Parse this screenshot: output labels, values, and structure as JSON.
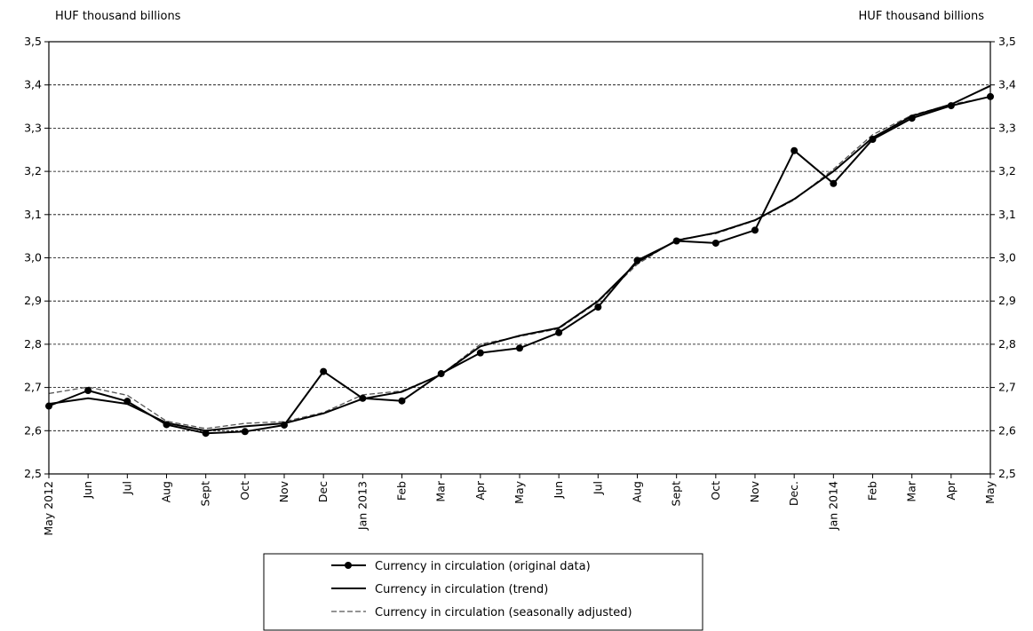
{
  "chart_data": {
    "type": "line",
    "left_axis_label": "HUF thousand  billions",
    "right_axis_label": "HUF thousand  billions",
    "ylim": [
      2.5,
      3.5
    ],
    "yticks": [
      "2,5",
      "2,6",
      "2,7",
      "2,8",
      "2,9",
      "3,0",
      "3,1",
      "3,2",
      "3,3",
      "3,4",
      "3,5"
    ],
    "categories": [
      "May 2012",
      "Jun",
      "Jul",
      "Aug",
      "Sept",
      "Oct",
      "Nov",
      "Dec",
      "Jan 2013",
      "Feb",
      "Mar",
      "Apr",
      "May",
      "Jun",
      "Jul",
      "Aug",
      "Sept",
      "Oct",
      "Nov",
      "Dec.",
      "Jan 2014",
      "Feb",
      "Mar",
      "Apr",
      "May"
    ],
    "grid": "horizontal dashed",
    "legend_position": "bottom-center",
    "series": [
      {
        "name": "Currency in circulation (original data)",
        "style": "solid-markers",
        "color": "#000000",
        "values": [
          2.657,
          2.693,
          2.668,
          2.614,
          2.594,
          2.598,
          2.613,
          2.737,
          2.675,
          2.669,
          2.732,
          2.78,
          2.791,
          2.827,
          2.886,
          2.994,
          3.039,
          3.034,
          3.064,
          3.248,
          3.172,
          3.274,
          3.323,
          3.352,
          3.373
        ]
      },
      {
        "name": "Currency in circulation (trend)",
        "style": "solid",
        "color": "#000000",
        "values": [
          2.662,
          2.675,
          2.662,
          2.618,
          2.6,
          2.61,
          2.617,
          2.64,
          2.674,
          2.69,
          2.73,
          2.795,
          2.82,
          2.838,
          2.9,
          2.99,
          3.04,
          3.058,
          3.087,
          3.136,
          3.2,
          3.278,
          3.328,
          3.355,
          3.398
        ]
      },
      {
        "name": "Currency in circulation (seasonally adjusted)",
        "style": "dashed",
        "color": "#555555",
        "values": [
          2.686,
          2.701,
          2.682,
          2.622,
          2.605,
          2.617,
          2.621,
          2.642,
          2.683,
          2.692,
          2.73,
          2.8,
          2.818,
          2.836,
          2.898,
          2.985,
          3.042,
          3.056,
          3.086,
          3.134,
          3.205,
          3.285,
          3.33,
          3.355,
          3.372
        ]
      }
    ]
  }
}
